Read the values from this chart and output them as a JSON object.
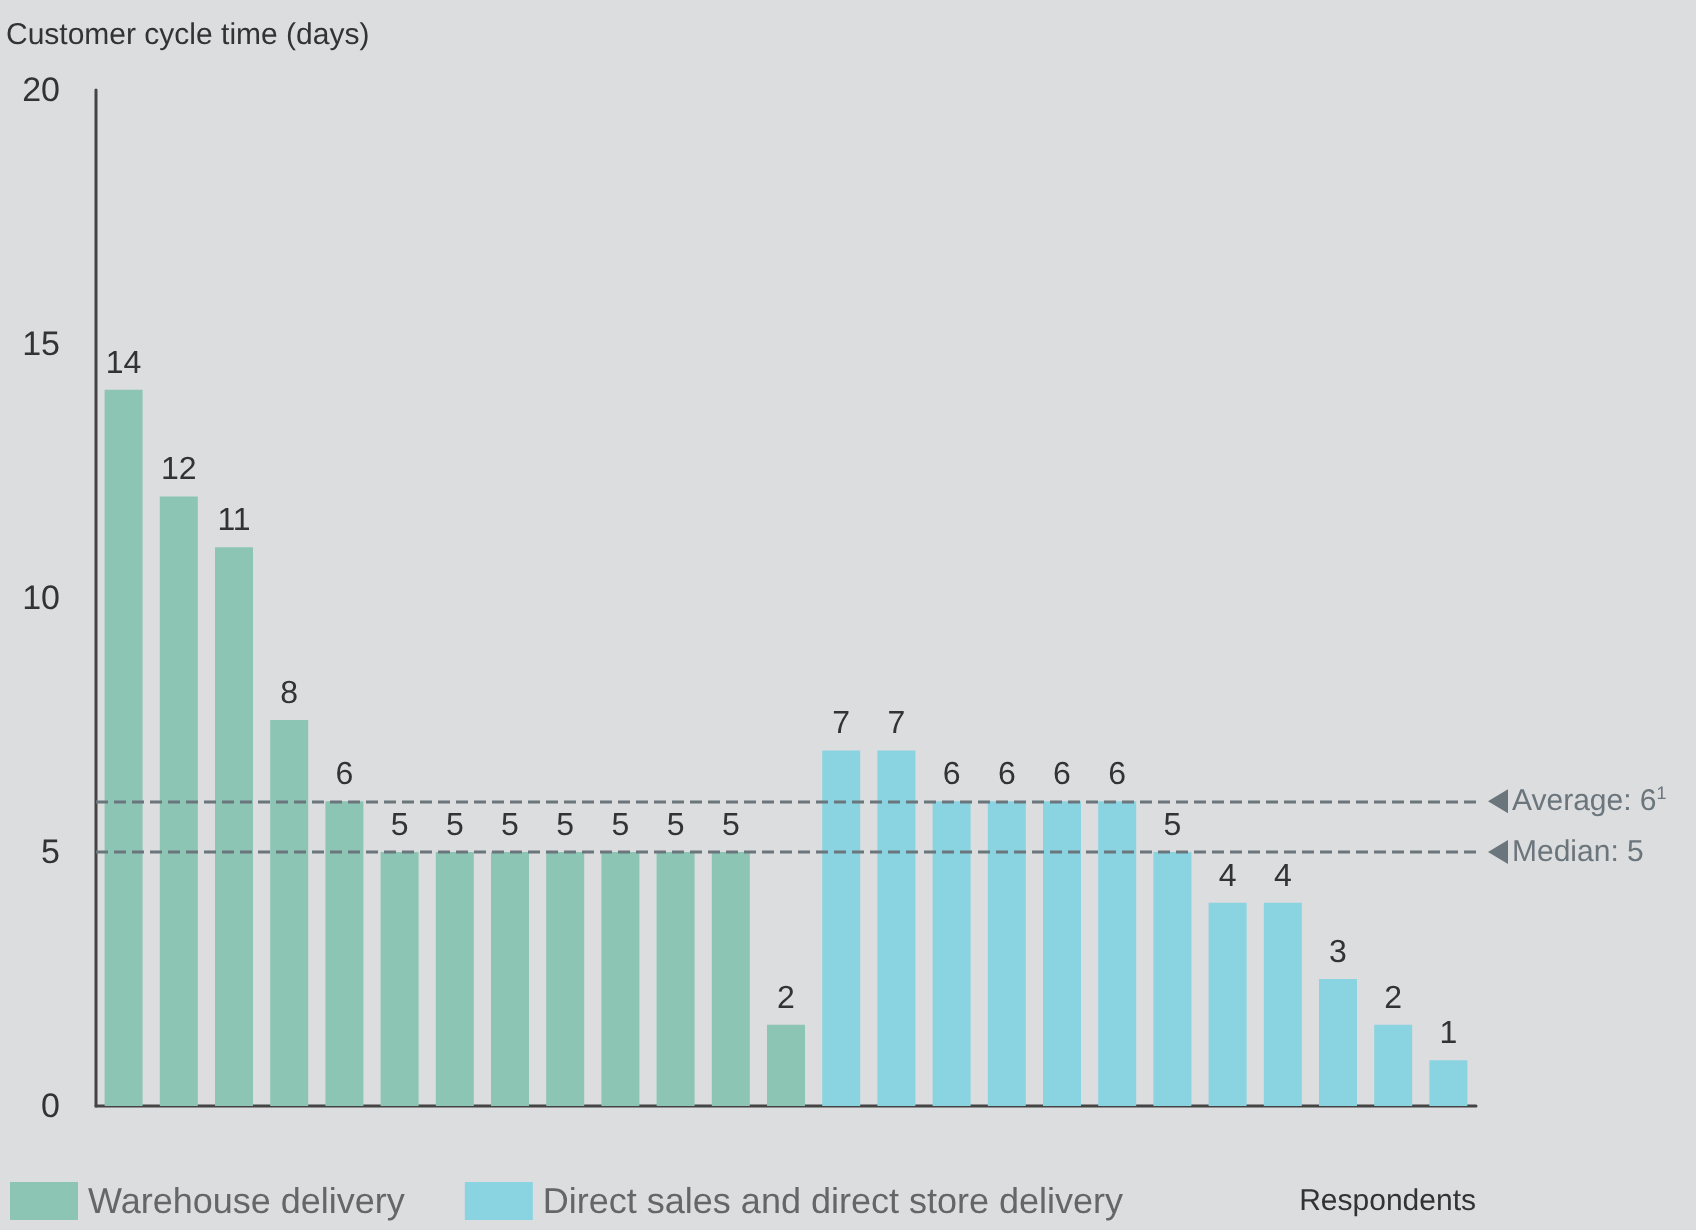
{
  "chart_data": {
    "type": "bar",
    "ylabel": "Customer cycle time (days)",
    "xlabel": "Respondents",
    "categories": [
      null,
      null,
      null,
      null,
      null,
      null,
      null,
      null,
      null,
      null,
      null,
      null,
      null,
      null,
      null,
      null,
      null,
      null,
      null,
      null,
      null,
      null,
      null,
      null,
      null
    ],
    "series": [
      {
        "name": "Warehouse delivery",
        "color": "#8cc5b4",
        "values": [
          14.1,
          12,
          11,
          7.6,
          6,
          5,
          5,
          5,
          5,
          5,
          5,
          5,
          1.6,
          null,
          null,
          null,
          null,
          null,
          null,
          null,
          null,
          null,
          null,
          null,
          null
        ],
        "value_labels": [
          "14",
          "12",
          "11",
          "8",
          "6",
          "5",
          "5",
          "5",
          "5",
          "5",
          "5",
          "5",
          "2",
          null,
          null,
          null,
          null,
          null,
          null,
          null,
          null,
          null,
          null,
          null,
          null
        ]
      },
      {
        "name": "Direct sales and direct store delivery",
        "color": "#8ad4e2",
        "values": [
          null,
          null,
          null,
          null,
          null,
          null,
          null,
          null,
          null,
          null,
          null,
          null,
          null,
          7,
          7,
          6,
          6,
          6,
          6,
          5,
          4,
          4,
          2.5,
          1.6,
          0.9
        ],
        "value_labels": [
          null,
          null,
          null,
          null,
          null,
          null,
          null,
          null,
          null,
          null,
          null,
          null,
          null,
          "7",
          "7",
          "6",
          "6",
          "6",
          "6",
          "5",
          "4",
          "4",
          "3",
          "2",
          "1"
        ]
      }
    ],
    "ylim": [
      0,
      20
    ],
    "yticks": [
      0,
      5,
      10,
      15,
      20
    ],
    "legend": "bottom",
    "ref_lines": [
      {
        "axis": "y",
        "value": 6,
        "label": "Average: 6$^{1}$",
        "color": "#6b757c",
        "line_style": "dashed"
      },
      {
        "axis": "y",
        "value": 5,
        "label": "Median: 5",
        "color": "#6b757c",
        "line_style": "dashed"
      }
    ]
  }
}
